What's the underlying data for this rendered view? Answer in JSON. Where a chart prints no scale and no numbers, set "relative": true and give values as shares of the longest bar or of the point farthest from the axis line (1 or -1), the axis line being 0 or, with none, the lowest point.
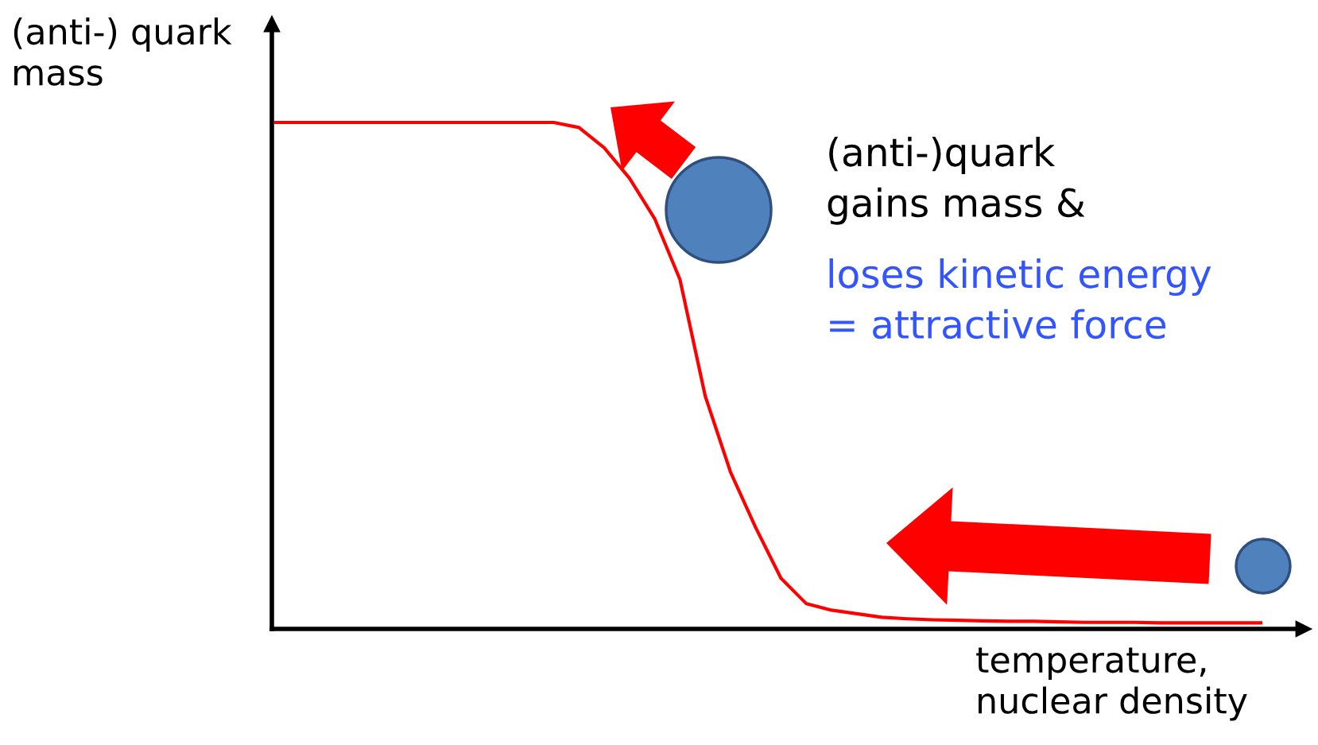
{
  "chart_data": {
    "type": "line",
    "relative": true,
    "ylabel": "(anti-) quark\nmass",
    "xlabel": "temperature,\nnuclear density",
    "categories": [
      null,
      null,
      null,
      null,
      null,
      null,
      null,
      null,
      null,
      null,
      null,
      null,
      null,
      null,
      null,
      null,
      null,
      null,
      null,
      null,
      null,
      null,
      null,
      null,
      null,
      null,
      null,
      null,
      null,
      null,
      null,
      null,
      null,
      null,
      null,
      null,
      null,
      null,
      null,
      null
    ],
    "series": [
      {
        "color": "#ff0000",
        "values": [
          1.0,
          1.0,
          1.0,
          1.0,
          1.0,
          1.0,
          1.0,
          1.0,
          1.0,
          1.0,
          1.0,
          1.0,
          0.99,
          0.95,
          0.89,
          0.81,
          0.69,
          0.46,
          0.31,
          0.2,
          0.1,
          0.05,
          0.037,
          0.03,
          0.023,
          0.02,
          0.018,
          0.017,
          0.016,
          0.015,
          0.015,
          0.014,
          0.013,
          0.013,
          0.013,
          0.012,
          0.012,
          0.012,
          0.012,
          0.012
        ]
      }
    ],
    "annotations": [
      "(anti-)quark\ngains mass &",
      "loses kinetic energy\n= attractive force"
    ]
  }
}
